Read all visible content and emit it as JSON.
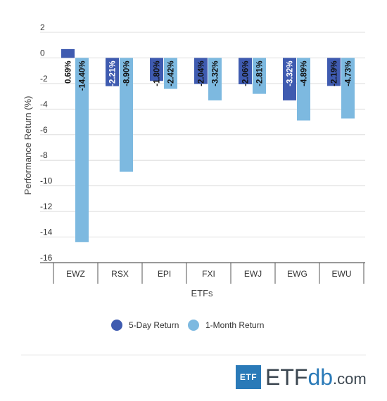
{
  "chart_data": {
    "type": "bar",
    "xlabel": "ETFs",
    "ylabel": "Performance Return (%)",
    "ylim": [
      -16,
      2
    ],
    "yticks": [
      2,
      0,
      -2,
      -4,
      -6,
      -8,
      -10,
      -12,
      -14,
      -16
    ],
    "categories": [
      "EWZ",
      "RSX",
      "EPI",
      "FXI",
      "EWJ",
      "EWG",
      "EWU"
    ],
    "series": [
      {
        "name": "5-Day Return",
        "color": "#3f5bb0",
        "values": [
          0.69,
          -2.21,
          -1.8,
          -2.04,
          -2.06,
          -3.32,
          -2.19
        ],
        "labels": [
          "0.69%",
          "-2.21%",
          "-1.80%",
          "-2.04%",
          "-2.06%",
          "-3.32%",
          "-2.19%"
        ]
      },
      {
        "name": "1-Month Return",
        "color": "#7db9e0",
        "values": [
          -14.4,
          -8.9,
          -2.42,
          -3.32,
          -2.81,
          -4.89,
          -4.73
        ],
        "labels": [
          "-14.40%",
          "-8.90%",
          "-2.42%",
          "-3.32%",
          "-2.81%",
          "-4.89%",
          "-4.73%"
        ]
      }
    ],
    "grid": true,
    "legend_position": "bottom"
  },
  "brand": {
    "box_text": "ETF",
    "name_part1": "ETF",
    "name_part2": "db",
    "name_part3": ".com"
  }
}
